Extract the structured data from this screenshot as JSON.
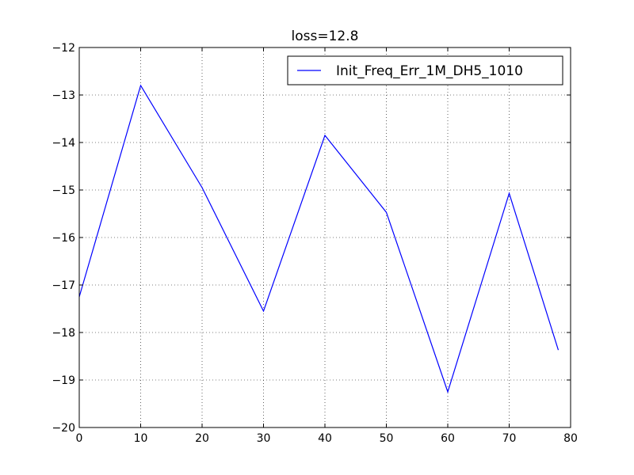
{
  "chart_data": {
    "type": "line",
    "title": "loss=12.8",
    "xlabel": "",
    "ylabel": "",
    "xlim": [
      0,
      80
    ],
    "ylim": [
      -20,
      -12
    ],
    "xticks": [
      0,
      10,
      20,
      30,
      40,
      50,
      60,
      70,
      80
    ],
    "yticks": [
      -20,
      -19,
      -18,
      -17,
      -16,
      -15,
      -14,
      -13,
      -12
    ],
    "xtick_labels": [
      "0",
      "10",
      "20",
      "30",
      "40",
      "50",
      "60",
      "70",
      "80"
    ],
    "ytick_labels": [
      "−20",
      "−19",
      "−18",
      "−17",
      "−16",
      "−15",
      "−14",
      "−13",
      "−12"
    ],
    "grid": true,
    "legend_position": "upper-right",
    "series": [
      {
        "name": "Init_Freq_Err_1M_DH5_1010",
        "color": "#0000ff",
        "x": [
          0,
          10,
          20,
          30,
          40,
          50,
          60,
          70,
          78
        ],
        "y": [
          -17.25,
          -12.8,
          -14.95,
          -17.55,
          -13.85,
          -15.47,
          -19.25,
          -15.07,
          -18.37
        ]
      }
    ]
  }
}
